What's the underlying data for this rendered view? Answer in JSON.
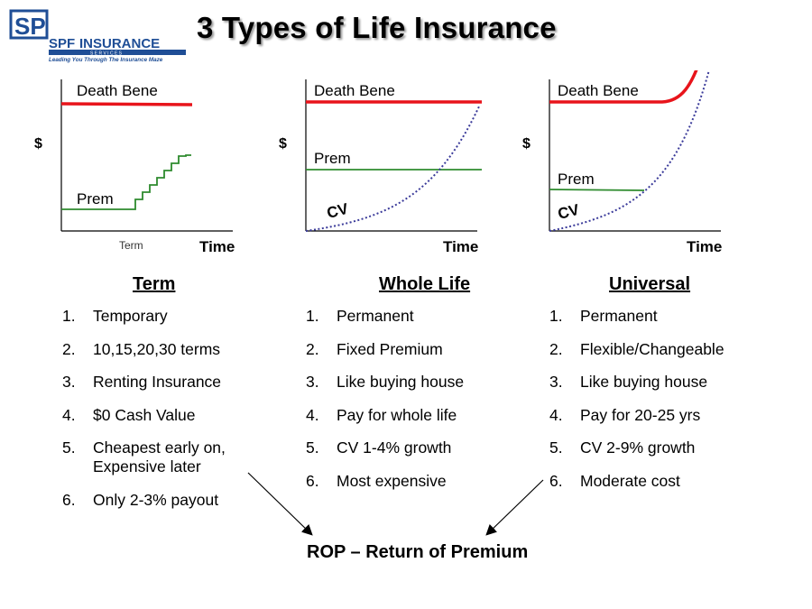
{
  "title": "3 Types of Life Insurance",
  "logo": {
    "mark": "SP",
    "name_big1": "SPF",
    "name_big2": "INSURANCE",
    "services": "S E R V I C E S",
    "tagline": "Leading You Through The Insurance Maze",
    "brand_color": "#1f4e96"
  },
  "colors": {
    "death_benefit": "#e8141b",
    "premium": "#2e8b2e",
    "cash_value": "#3b3b9a"
  },
  "chart_data": [
    {
      "type": "line",
      "name": "Term",
      "ylabel": "$",
      "xlabel": "Time",
      "annotations": [
        "Term"
      ],
      "series": [
        {
          "name": "Death Bene",
          "shape": "flat high"
        },
        {
          "name": "Prem",
          "shape": "flat, then stepping up after term"
        }
      ]
    },
    {
      "type": "line",
      "name": "Whole Life",
      "ylabel": "$",
      "xlabel": "Time",
      "series": [
        {
          "name": "Death Bene",
          "shape": "flat high"
        },
        {
          "name": "Prem",
          "shape": "flat"
        },
        {
          "name": "CV",
          "shape": "exponential growth reaching death benefit"
        }
      ]
    },
    {
      "type": "line",
      "name": "Universal",
      "ylabel": "$",
      "xlabel": "Time",
      "series": [
        {
          "name": "Death Bene",
          "shape": "flat then rising sharply"
        },
        {
          "name": "Prem",
          "shape": "flat then ending"
        },
        {
          "name": "CV",
          "shape": "exponential growth"
        }
      ]
    }
  ],
  "columns": [
    {
      "heading": "Term",
      "items": [
        {
          "num": "1.",
          "text": "Temporary"
        },
        {
          "num": "2.",
          "text": "10,15,20,30 terms"
        },
        {
          "num": "3.",
          "text": "Renting Insurance"
        },
        {
          "num": "4.",
          "text": "$0 Cash Value"
        },
        {
          "num": "5.",
          "text": "Cheapest early on,",
          "text2": "Expensive later"
        },
        {
          "num": "6.",
          "text": "Only 2-3% payout"
        }
      ]
    },
    {
      "heading": "Whole Life",
      "items": [
        {
          "num": "1.",
          "text": "Permanent"
        },
        {
          "num": "2.",
          "text": "Fixed Premium"
        },
        {
          "num": "3.",
          "text": "Like buying house"
        },
        {
          "num": "4.",
          "text": "Pay for whole life"
        },
        {
          "num": "5.",
          "text": "CV 1-4% growth"
        },
        {
          "num": "6.",
          "text": "Most expensive"
        }
      ]
    },
    {
      "heading": "Universal",
      "items": [
        {
          "num": "1.",
          "text": "Permanent"
        },
        {
          "num": "2.",
          "text": "Flexible/Changeable"
        },
        {
          "num": "3.",
          "text": "Like buying house"
        },
        {
          "num": "4.",
          "text": "Pay for 20-25 yrs"
        },
        {
          "num": "5.",
          "text": "CV 2-9% growth"
        },
        {
          "num": "6.",
          "text": "Moderate cost"
        }
      ]
    }
  ],
  "footer": {
    "rop": "ROP – Return of Premium"
  }
}
